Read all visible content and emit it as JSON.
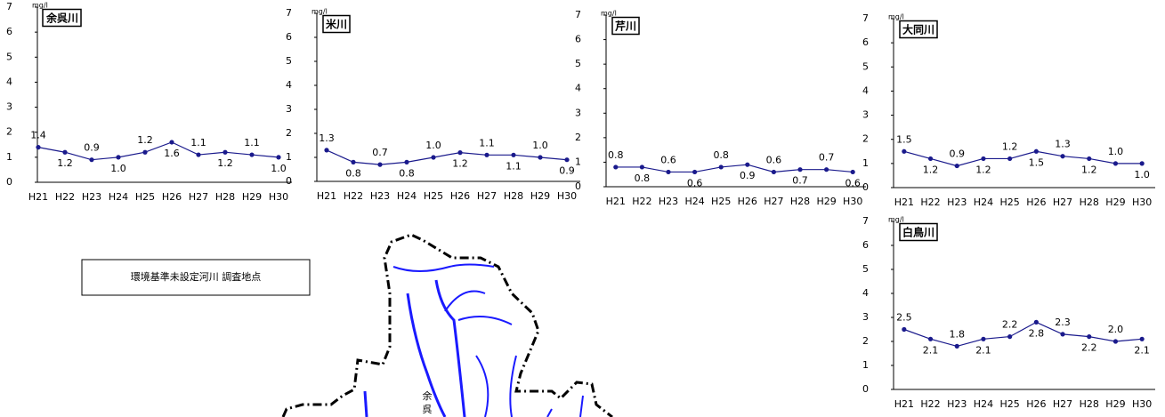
{
  "chart_data": [
    {
      "type": "line",
      "title": "余呉川",
      "unit": "mg/l",
      "categories": [
        "H21",
        "H22",
        "H23",
        "H24",
        "H25",
        "H26",
        "H27",
        "H28",
        "H29",
        "H30"
      ],
      "series": [
        {
          "color": "#1a1a8c",
          "values": [
            1.4,
            1.2,
            0.9,
            1.0,
            1.2,
            1.6,
            1.1,
            1.2,
            1.1,
            1.0
          ],
          "value_labels": [
            "1.4",
            "1.2",
            "0.9",
            "1.0",
            "1.2",
            "1.6",
            "1.1",
            "1.2",
            "1.1",
            "1.0"
          ]
        }
      ],
      "ylim": [
        0,
        7
      ],
      "yticks": [
        0,
        1,
        2,
        3,
        4,
        5,
        6,
        7
      ]
    },
    {
      "type": "line",
      "title": "米川",
      "unit": "mg/l",
      "categories": [
        "H21",
        "H22",
        "H23",
        "H24",
        "H25",
        "H26",
        "H27",
        "H28",
        "H29",
        "H30"
      ],
      "series": [
        {
          "color": "#1a1a8c",
          "values": [
            1.3,
            0.8,
            0.7,
            0.8,
            1.0,
            1.2,
            1.1,
            1.1,
            1.0,
            0.9
          ],
          "value_labels": [
            "1.3",
            "0.8",
            "0.7",
            "0.8",
            "1.0",
            "1.2",
            "1.1",
            "1.1",
            "1.0",
            "0.9"
          ]
        }
      ],
      "ylim": [
        0,
        7
      ],
      "yticks": [
        0,
        1,
        2,
        3,
        4,
        5,
        6,
        7
      ]
    },
    {
      "type": "line",
      "title": "芹川",
      "unit": "mg/l",
      "categories": [
        "H21",
        "H22",
        "H23",
        "H24",
        "H25",
        "H26",
        "H27",
        "H28",
        "H29",
        "H30"
      ],
      "series": [
        {
          "color": "#1a1a8c",
          "values": [
            0.8,
            0.8,
            0.6,
            0.6,
            0.8,
            0.9,
            0.6,
            0.7,
            0.7,
            0.6
          ],
          "value_labels": [
            "0.8",
            "0.8",
            "0.6",
            "0.6",
            "0.8",
            "0.9",
            "0.6",
            "0.7",
            "0.7",
            "0.6"
          ]
        }
      ],
      "ylim": [
        0,
        7
      ],
      "yticks": [
        0,
        1,
        2,
        3,
        4,
        5,
        6,
        7
      ]
    },
    {
      "type": "line",
      "title": "大同川",
      "unit": "mg/l",
      "categories": [
        "H21",
        "H22",
        "H23",
        "H24",
        "H25",
        "H26",
        "H27",
        "H28",
        "H29",
        "H30"
      ],
      "series": [
        {
          "color": "#1a1a8c",
          "values": [
            1.5,
            1.2,
            0.9,
            1.2,
            1.2,
            1.5,
            1.3,
            1.2,
            1.0,
            1.0
          ],
          "value_labels": [
            "1.5",
            "1.2",
            "0.9",
            "1.2",
            "1.2",
            "1.5",
            "1.3",
            "1.2",
            "1.0",
            "1.0"
          ]
        }
      ],
      "ylim": [
        0,
        7
      ],
      "yticks": [
        0,
        1,
        2,
        3,
        4,
        5,
        6,
        7
      ]
    },
    {
      "type": "line",
      "title": "白鳥川",
      "unit": "mg/l",
      "categories": [
        "H21",
        "H22",
        "H23",
        "H24",
        "H25",
        "H26",
        "H27",
        "H28",
        "H29",
        "H30"
      ],
      "series": [
        {
          "color": "#1a1a8c",
          "values": [
            2.5,
            2.1,
            1.8,
            2.1,
            2.2,
            2.8,
            2.3,
            2.2,
            2.0,
            2.1
          ],
          "value_labels": [
            "2.5",
            "2.1",
            "1.8",
            "2.1",
            "2.2",
            "2.8",
            "2.3",
            "2.2",
            "2.0",
            "2.1"
          ]
        }
      ],
      "ylim": [
        0,
        7
      ],
      "yticks": [
        0,
        1,
        2,
        3,
        4,
        5,
        6,
        7
      ]
    }
  ],
  "map": {
    "legend": "環境基準未設定河川 調査地点",
    "labels": [
      "余",
      "呉"
    ]
  }
}
